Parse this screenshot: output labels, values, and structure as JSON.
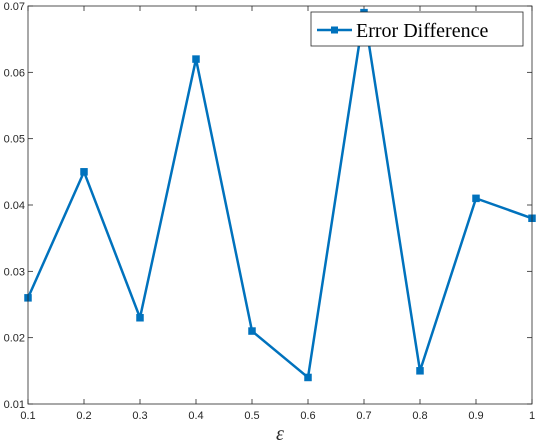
{
  "chart_data": {
    "type": "line",
    "xlabel": "ε",
    "ylabel": "",
    "xlim": [
      0.1,
      1.0
    ],
    "ylim": [
      0.01,
      0.07
    ],
    "x_ticks": [
      "0.1",
      "0.2",
      "0.3",
      "0.4",
      "0.5",
      "0.6",
      "0.7",
      "0.8",
      "0.9",
      "1"
    ],
    "y_ticks": [
      "0.01",
      "0.02",
      "0.03",
      "0.04",
      "0.05",
      "0.06",
      "0.07"
    ],
    "legend_position": "top-right",
    "grid": false,
    "series": [
      {
        "name": "Error Difference",
        "color": "#0072BD",
        "marker": "square",
        "x": [
          0.1,
          0.2,
          0.3,
          0.4,
          0.5,
          0.6,
          0.7,
          0.8,
          0.9,
          1.0
        ],
        "values": [
          0.026,
          0.045,
          0.023,
          0.062,
          0.021,
          0.014,
          0.069,
          0.015,
          0.041,
          0.038
        ]
      }
    ]
  }
}
